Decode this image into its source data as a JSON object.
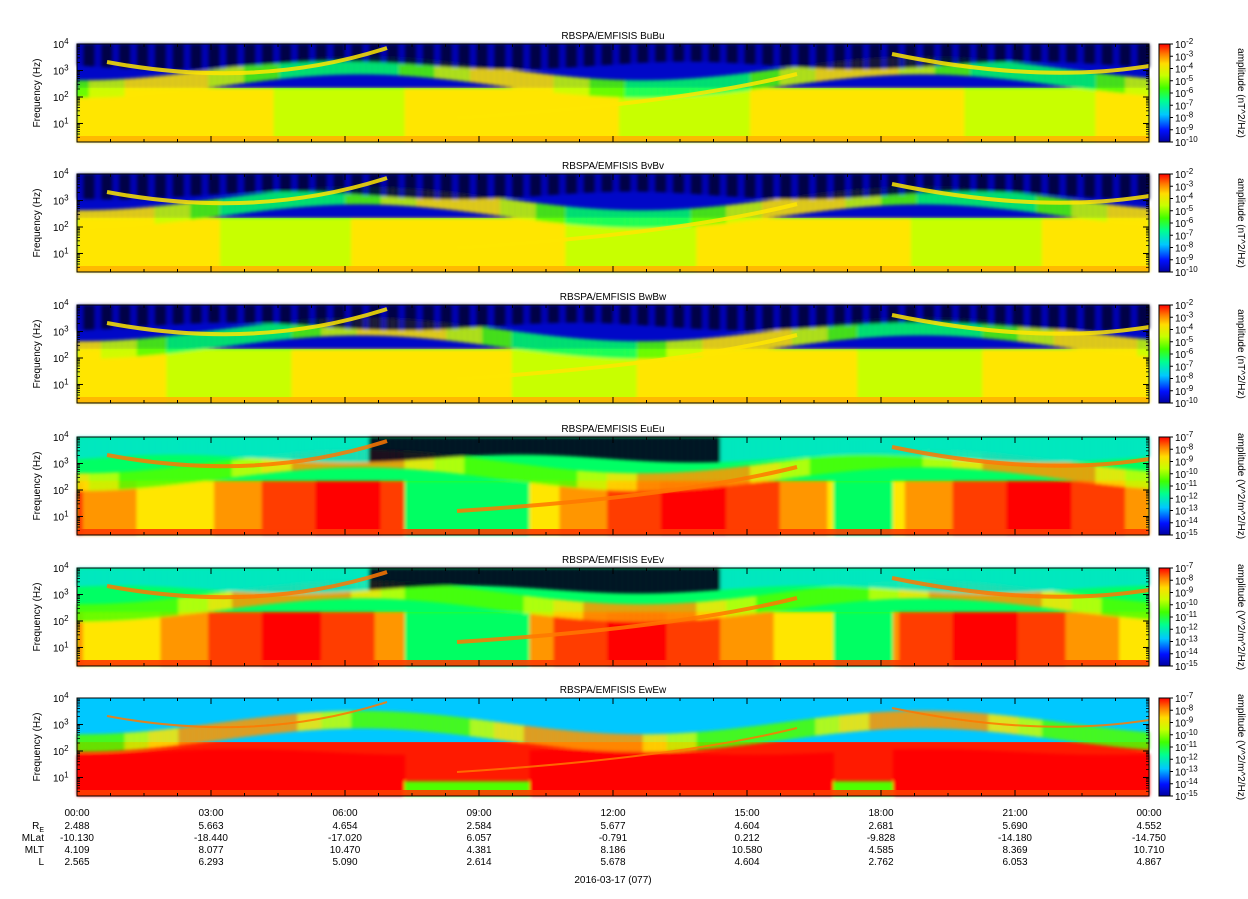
{
  "chart_data": [
    {
      "type": "heatmap",
      "title": "RBSPA/EMFISIS  BuBu",
      "ylabel": "Frequency (Hz)",
      "yscale": "log",
      "ylim": [
        2,
        10000
      ],
      "yticks": [
        "10^1",
        "10^2",
        "10^3",
        "10^4"
      ],
      "colorbar": {
        "label": "amplitude (nT^2/Hz)",
        "min_exp": -10,
        "max_exp": -2,
        "ticks": [
          "10^-2",
          "10^-3",
          "10^-4",
          "10^-5",
          "10^-6",
          "10^-7",
          "10^-8",
          "10^-9",
          "10^-10"
        ]
      }
    },
    {
      "type": "heatmap",
      "title": "RBSPA/EMFISIS  BvBv",
      "ylabel": "Frequency (Hz)",
      "yscale": "log",
      "ylim": [
        2,
        10000
      ],
      "yticks": [
        "10^1",
        "10^2",
        "10^3",
        "10^4"
      ],
      "colorbar": {
        "label": "amplitude (nT^2/Hz)",
        "min_exp": -10,
        "max_exp": -2,
        "ticks": [
          "10^-2",
          "10^-3",
          "10^-4",
          "10^-5",
          "10^-6",
          "10^-7",
          "10^-8",
          "10^-9",
          "10^-10"
        ]
      }
    },
    {
      "type": "heatmap",
      "title": "RBSPA/EMFISIS  BwBw",
      "ylabel": "Frequency (Hz)",
      "yscale": "log",
      "ylim": [
        2,
        10000
      ],
      "yticks": [
        "10^1",
        "10^2",
        "10^3",
        "10^4"
      ],
      "colorbar": {
        "label": "amplitude (nT^2/Hz)",
        "min_exp": -10,
        "max_exp": -2,
        "ticks": [
          "10^-2",
          "10^-3",
          "10^-4",
          "10^-5",
          "10^-6",
          "10^-7",
          "10^-8",
          "10^-9",
          "10^-10"
        ]
      }
    },
    {
      "type": "heatmap",
      "title": "RBSPA/EMFISIS  EuEu",
      "ylabel": "Frequency (Hz)",
      "yscale": "log",
      "ylim": [
        2,
        10000
      ],
      "yticks": [
        "10^1",
        "10^2",
        "10^3",
        "10^4"
      ],
      "colorbar": {
        "label": "amplitude (V^2/m^2/Hz)",
        "min_exp": -15,
        "max_exp": -7,
        "ticks": [
          "10^-7",
          "10^-8",
          "10^-9",
          "10^-10",
          "10^-11",
          "10^-12",
          "10^-13",
          "10^-14",
          "10^-15"
        ]
      }
    },
    {
      "type": "heatmap",
      "title": "RBSPA/EMFISIS  EvEv",
      "ylabel": "Frequency (Hz)",
      "yscale": "log",
      "ylim": [
        2,
        10000
      ],
      "yticks": [
        "10^1",
        "10^2",
        "10^3",
        "10^4"
      ],
      "colorbar": {
        "label": "amplitude (V^2/m^2/Hz)",
        "min_exp": -15,
        "max_exp": -7,
        "ticks": [
          "10^-7",
          "10^-8",
          "10^-9",
          "10^-10",
          "10^-11",
          "10^-12",
          "10^-13",
          "10^-14",
          "10^-15"
        ]
      }
    },
    {
      "type": "heatmap",
      "title": "RBSPA/EMFISIS  EwEw",
      "ylabel": "Frequency (Hz)",
      "yscale": "log",
      "ylim": [
        2,
        10000
      ],
      "yticks": [
        "10^1",
        "10^2",
        "10^3",
        "10^4"
      ],
      "colorbar": {
        "label": "amplitude (V^2/m^2/Hz)",
        "min_exp": -15,
        "max_exp": -7,
        "ticks": [
          "10^-7",
          "10^-8",
          "10^-9",
          "10^-10",
          "10^-11",
          "10^-12",
          "10^-13",
          "10^-14",
          "10^-15"
        ]
      }
    }
  ],
  "time_axis": {
    "ticks": [
      "00:00",
      "03:00",
      "06:00",
      "09:00",
      "12:00",
      "15:00",
      "18:00",
      "21:00",
      "00:00"
    ],
    "date_label": "2016-03-17 (077)"
  },
  "ephemeris": [
    {
      "label": "R",
      "label_sub": "E",
      "values": [
        "2.488",
        "5.663",
        "4.654",
        "2.584",
        "5.677",
        "4.604",
        "2.681",
        "5.690",
        "4.552"
      ]
    },
    {
      "label": "MLat",
      "values": [
        "-10.130",
        "-18.440",
        "-17.020",
        "6.057",
        "-0.791",
        "0.212",
        "-9.828",
        "-14.180",
        "-14.750"
      ]
    },
    {
      "label": "MLT",
      "values": [
        "4.109",
        "8.077",
        "10.470",
        "4.381",
        "8.186",
        "10.580",
        "4.585",
        "8.369",
        "10.710"
      ]
    },
    {
      "label": "L",
      "values": [
        "2.565",
        "6.293",
        "5.090",
        "2.614",
        "5.678",
        "4.604",
        "2.762",
        "6.053",
        "4.867"
      ]
    }
  ]
}
